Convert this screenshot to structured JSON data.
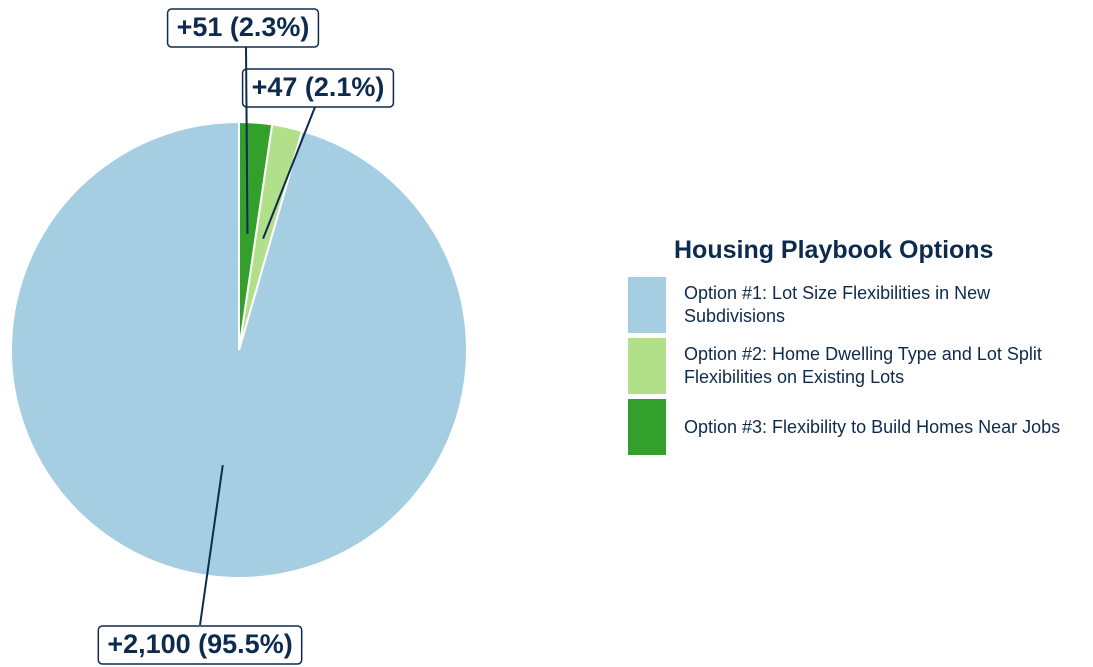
{
  "chart_data": {
    "type": "pie",
    "legend_title": "Housing Playbook Options",
    "categories": [
      "Option #1: Lot Size Flexibilities in New Subdivisions",
      "Option #2: Home Dwelling Type and Lot Split Flexibilities on Existing Lots",
      "Option #3: Flexibility to Build Homes Near Jobs"
    ],
    "values": [
      2100,
      47,
      51
    ],
    "value_labels": [
      "+2,100 (95.5%)",
      "+47 (2.1%)",
      "+51 (2.3%)"
    ],
    "colors": [
      "#a6cee3",
      "#b2df8a",
      "#33a02c"
    ],
    "legend": "right"
  }
}
